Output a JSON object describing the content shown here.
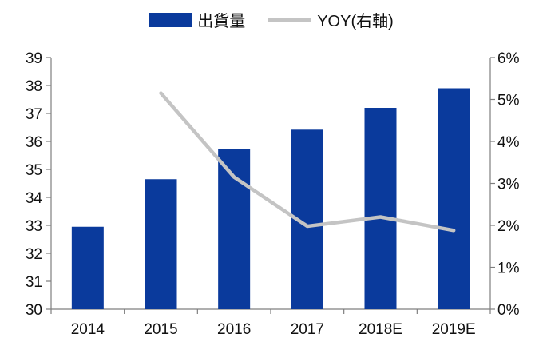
{
  "legend": {
    "bar_label": "出貨量",
    "line_label": "YOY(右軸)"
  },
  "colors": {
    "bar": "#0a3a9c",
    "line": "#c4c4c4",
    "axis": "#7f7f7f"
  },
  "chart_data": {
    "type": "bar",
    "categories": [
      "2014",
      "2015",
      "2016",
      "2017",
      "2018E",
      "2019E"
    ],
    "series": [
      {
        "name": "出貨量",
        "type": "bar",
        "axis": "left",
        "values": [
          32.95,
          34.65,
          35.72,
          36.42,
          37.2,
          37.9
        ]
      },
      {
        "name": "YOY(右軸)",
        "type": "line",
        "axis": "right",
        "values": [
          null,
          5.15,
          3.15,
          1.98,
          2.2,
          1.88
        ]
      }
    ],
    "y_left": {
      "min": 30,
      "max": 39,
      "ticks": [
        "30",
        "31",
        "32",
        "33",
        "34",
        "35",
        "36",
        "37",
        "38",
        "39"
      ]
    },
    "y_right": {
      "min": 0,
      "max": 6,
      "ticks": [
        "0%",
        "1%",
        "2%",
        "3%",
        "4%",
        "5%",
        "6%"
      ]
    },
    "grid": false,
    "legend_position": "top"
  }
}
